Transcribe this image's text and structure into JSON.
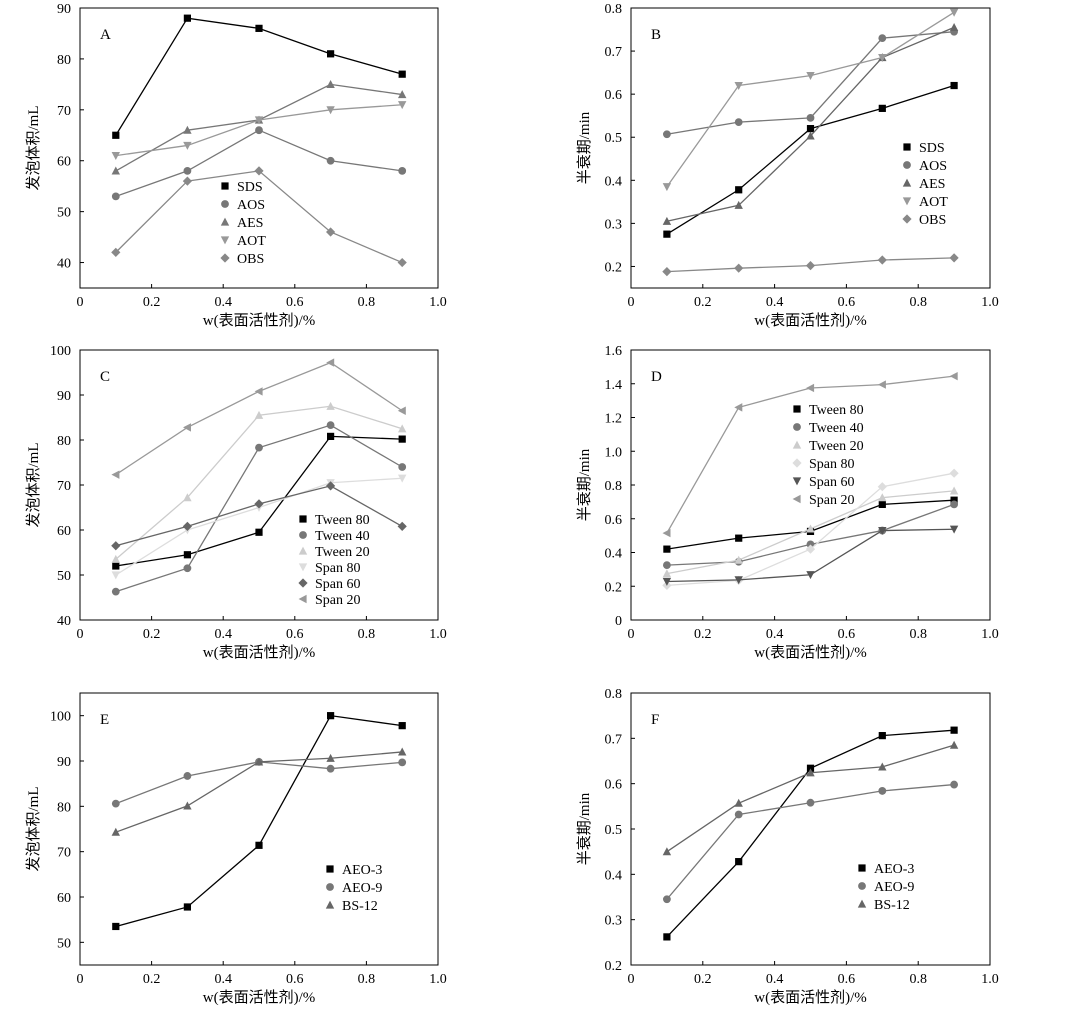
{
  "chart_data": [
    {
      "type": "line",
      "panel_label": "A",
      "xlabel": "w(表面活性剂)/%",
      "ylabel": "发泡体积/mL",
      "xlim": [
        0,
        1.0
      ],
      "ylim": [
        35,
        90
      ],
      "xticks": [
        "0",
        "0.2",
        "0.4",
        "0.6",
        "0.8",
        "1.0"
      ],
      "yticks": [
        "40",
        "50",
        "60",
        "70",
        "80",
        "90"
      ],
      "legend_position": "center",
      "x": [
        0.1,
        0.3,
        0.5,
        0.7,
        0.9
      ],
      "series": [
        {
          "name": "SDS",
          "marker": "square",
          "color": "#000000",
          "values": [
            65,
            88,
            86,
            81,
            77
          ]
        },
        {
          "name": "AOS",
          "marker": "circle",
          "color": "#777777",
          "values": [
            53,
            58,
            66,
            60,
            58
          ]
        },
        {
          "name": "AES",
          "marker": "triangle-up",
          "color": "#777777",
          "values": [
            58,
            66,
            68,
            75,
            73
          ]
        },
        {
          "name": "AOT",
          "marker": "triangle-down",
          "color": "#999999",
          "values": [
            61,
            63,
            68,
            70,
            71
          ]
        },
        {
          "name": "OBS",
          "marker": "diamond",
          "color": "#888888",
          "values": [
            42,
            56,
            58,
            46,
            40
          ]
        }
      ]
    },
    {
      "type": "line",
      "panel_label": "B",
      "xlabel": "w(表面活性剂)/%",
      "ylabel": "半衰期/min",
      "xlim": [
        0,
        1.0
      ],
      "ylim": [
        0.15,
        0.8
      ],
      "xticks": [
        "0",
        "0.2",
        "0.4",
        "0.6",
        "0.8",
        "1.0"
      ],
      "yticks": [
        "0.2",
        "0.3",
        "0.4",
        "0.5",
        "0.6",
        "0.7",
        "0.8"
      ],
      "legend_position": "right",
      "x": [
        0.1,
        0.3,
        0.5,
        0.7,
        0.9
      ],
      "series": [
        {
          "name": "SDS",
          "marker": "square",
          "color": "#000000",
          "values": [
            0.275,
            0.378,
            0.52,
            0.567,
            0.62
          ]
        },
        {
          "name": "AOS",
          "marker": "circle",
          "color": "#777777",
          "values": [
            0.507,
            0.535,
            0.545,
            0.73,
            0.745
          ]
        },
        {
          "name": "AES",
          "marker": "triangle-up",
          "color": "#666666",
          "values": [
            0.305,
            0.342,
            0.503,
            0.685,
            0.755
          ]
        },
        {
          "name": "AOT",
          "marker": "triangle-down",
          "color": "#999999",
          "values": [
            0.385,
            0.62,
            0.643,
            0.685,
            0.79
          ]
        },
        {
          "name": "OBS",
          "marker": "diamond",
          "color": "#888888",
          "values": [
            0.188,
            0.196,
            0.202,
            0.215,
            0.22
          ]
        }
      ]
    },
    {
      "type": "line",
      "panel_label": "C",
      "xlabel": "w(表面活性剂)/%",
      "ylabel": "发泡体积/mL",
      "xlim": [
        0,
        1.0
      ],
      "ylim": [
        40,
        100
      ],
      "xticks": [
        "0",
        "0.2",
        "0.4",
        "0.6",
        "0.8",
        "1.0"
      ],
      "yticks": [
        "40",
        "50",
        "60",
        "70",
        "80",
        "90",
        "100"
      ],
      "legend_position": "bottom-right",
      "x": [
        0.1,
        0.3,
        0.5,
        0.7,
        0.9
      ],
      "series": [
        {
          "name": "Tween 80",
          "marker": "square",
          "color": "#000000",
          "values": [
            52,
            54.5,
            59.5,
            80.8,
            80.2
          ]
        },
        {
          "name": "Tween 40",
          "marker": "circle",
          "color": "#777777",
          "values": [
            46.3,
            51.5,
            78.3,
            83.3,
            74
          ]
        },
        {
          "name": "Tween 20",
          "marker": "triangle-up",
          "color": "#cccccc",
          "values": [
            53.5,
            67.2,
            85.5,
            87.5,
            82.5
          ]
        },
        {
          "name": "Span 80",
          "marker": "triangle-down",
          "color": "#dddddd",
          "values": [
            50,
            60,
            65,
            70.5,
            71.5
          ]
        },
        {
          "name": "Span 60",
          "marker": "diamond",
          "color": "#666666",
          "values": [
            56.5,
            60.8,
            65.8,
            69.8,
            60.8
          ]
        },
        {
          "name": "Span 20",
          "marker": "triangle-left",
          "color": "#999999",
          "values": [
            72.3,
            82.8,
            90.8,
            97.2,
            86.5
          ]
        }
      ]
    },
    {
      "type": "line",
      "panel_label": "D",
      "xlabel": "w(表面活性剂)/%",
      "ylabel": "半衰期/min",
      "xlim": [
        0,
        1.0
      ],
      "ylim": [
        0.0,
        1.6
      ],
      "xticks": [
        "0",
        "0.2",
        "0.4",
        "0.6",
        "0.8",
        "1.0"
      ],
      "yticks": [
        "0",
        "0.2",
        "0.4",
        "0.6",
        "0.8",
        "1.0",
        "1.2",
        "1.4",
        "1.6"
      ],
      "legend_position": "center",
      "x": [
        0.1,
        0.3,
        0.5,
        0.7,
        0.9
      ],
      "series": [
        {
          "name": "Tween 80",
          "marker": "square",
          "color": "#000000",
          "values": [
            0.42,
            0.485,
            0.525,
            0.685,
            0.71
          ]
        },
        {
          "name": "Tween 40",
          "marker": "circle",
          "color": "#777777",
          "values": [
            0.325,
            0.345,
            0.448,
            0.53,
            0.685
          ]
        },
        {
          "name": "Tween 20",
          "marker": "triangle-up",
          "color": "#cccccc",
          "values": [
            0.275,
            0.355,
            0.54,
            0.725,
            0.765
          ]
        },
        {
          "name": "Span 80",
          "marker": "diamond",
          "color": "#dddddd",
          "values": [
            0.205,
            0.235,
            0.42,
            0.79,
            0.87
          ]
        },
        {
          "name": "Span 60",
          "marker": "triangle-down",
          "color": "#555555",
          "values": [
            0.228,
            0.238,
            0.268,
            0.53,
            0.538
          ]
        },
        {
          "name": "Span 20",
          "marker": "triangle-left",
          "color": "#999999",
          "values": [
            0.515,
            1.26,
            1.375,
            1.395,
            1.445
          ]
        }
      ]
    },
    {
      "type": "line",
      "panel_label": "E",
      "xlabel": "w(表面活性剂)/%",
      "ylabel": "发泡体积/mL",
      "xlim": [
        0,
        1.0
      ],
      "ylim": [
        45,
        105
      ],
      "xticks": [
        "0",
        "0.2",
        "0.4",
        "0.6",
        "0.8",
        "1.0"
      ],
      "yticks": [
        "50",
        "60",
        "70",
        "80",
        "90",
        "100"
      ],
      "legend_position": "bottom-right",
      "x": [
        0.1,
        0.3,
        0.5,
        0.7,
        0.9
      ],
      "series": [
        {
          "name": "AEO-3",
          "marker": "square",
          "color": "#000000",
          "values": [
            53.5,
            57.8,
            71.4,
            100,
            97.8
          ]
        },
        {
          "name": "AEO-9",
          "marker": "circle",
          "color": "#777777",
          "values": [
            80.6,
            86.7,
            89.8,
            88.3,
            89.7
          ]
        },
        {
          "name": "BS-12",
          "marker": "triangle-up",
          "color": "#666666",
          "values": [
            74.3,
            80.1,
            89.8,
            90.6,
            92
          ]
        }
      ]
    },
    {
      "type": "line",
      "panel_label": "F",
      "xlabel": "w(表面活性剂)/%",
      "ylabel": "半衰期/min",
      "xlim": [
        0,
        1.0
      ],
      "ylim": [
        0.2,
        0.8
      ],
      "xticks": [
        "0",
        "0.2",
        "0.4",
        "0.6",
        "0.8",
        "1.0"
      ],
      "yticks": [
        "0.2",
        "0.3",
        "0.4",
        "0.5",
        "0.6",
        "0.7",
        "0.8"
      ],
      "legend_position": "bottom-right",
      "x": [
        0.1,
        0.3,
        0.5,
        0.7,
        0.9
      ],
      "series": [
        {
          "name": "AEO-3",
          "marker": "square",
          "color": "#000000",
          "values": [
            0.262,
            0.428,
            0.634,
            0.706,
            0.718
          ]
        },
        {
          "name": "AEO-9",
          "marker": "circle",
          "color": "#777777",
          "values": [
            0.345,
            0.532,
            0.558,
            0.584,
            0.598
          ]
        },
        {
          "name": "BS-12",
          "marker": "triangle-up",
          "color": "#666666",
          "values": [
            0.45,
            0.557,
            0.624,
            0.637,
            0.685
          ]
        }
      ]
    }
  ]
}
